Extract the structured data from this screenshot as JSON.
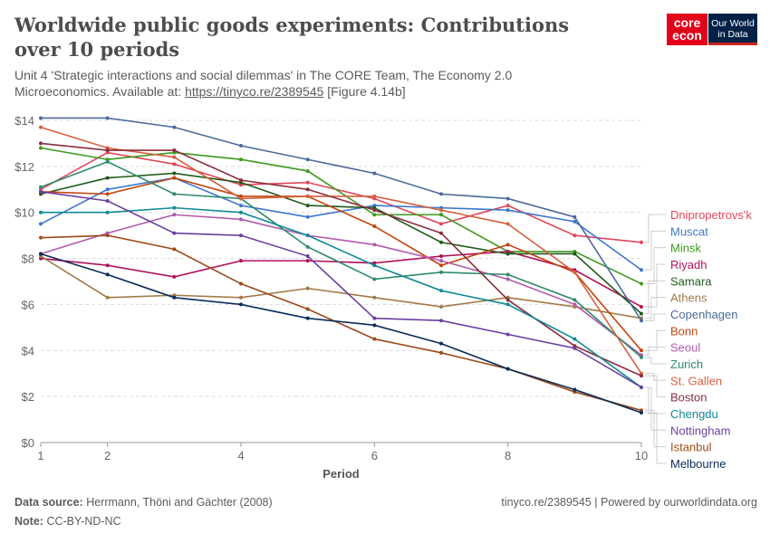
{
  "header": {
    "title": "Worldwide public goods experiments: Contributions over 10 periods",
    "subtitle_text": "Unit 4 'Strategic interactions and social dilemmas' in The CORE Team, The Economy 2.0 Microeconomics. Available at: ",
    "subtitle_link": "https://tinyco.re/2389545",
    "subtitle_suffix": " [Figure 4.14b]",
    "logo_core": "core econ",
    "logo_owid": "Our World in Data"
  },
  "footer": {
    "source_label": "Data source:",
    "source": "Herrmann, Thöni and Gächter (2008)",
    "note_label": "Note:",
    "note": "CC-BY-ND-NC",
    "right": "tinyco.re/2389545 | Powered by ourworldindata.org"
  },
  "chart_data": {
    "type": "line",
    "xlabel": "Period",
    "ylabel": "",
    "x": [
      1,
      2,
      3,
      4,
      5,
      6,
      7,
      8,
      9,
      10
    ],
    "xticks": [
      1,
      2,
      4,
      6,
      8,
      10
    ],
    "ylim": [
      0,
      14
    ],
    "yticks": [
      "$0",
      "$2",
      "$4",
      "$6",
      "$8",
      "$10",
      "$12",
      "$14"
    ],
    "ytick_values": [
      0,
      2,
      4,
      6,
      8,
      10,
      12,
      14
    ],
    "grid": "horizontal dashed",
    "legend_placement": "right",
    "series": [
      {
        "name": "Dnipropetrovs'k",
        "color": "#e0475a",
        "values": [
          11.0,
          12.6,
          12.1,
          11.2,
          11.3,
          10.6,
          9.5,
          10.3,
          9.0,
          8.7
        ]
      },
      {
        "name": "Muscat",
        "color": "#3c78cc",
        "values": [
          9.5,
          11.0,
          11.5,
          10.3,
          9.8,
          10.3,
          10.2,
          10.1,
          9.6,
          7.5
        ]
      },
      {
        "name": "Minsk",
        "color": "#3d9a1f",
        "values": [
          12.8,
          12.3,
          12.6,
          12.3,
          11.8,
          9.9,
          9.9,
          8.3,
          8.3,
          6.9
        ]
      },
      {
        "name": "Riyadh",
        "color": "#b0125a",
        "values": [
          8.0,
          7.7,
          7.2,
          7.9,
          7.9,
          7.8,
          8.1,
          8.3,
          7.5,
          5.9
        ]
      },
      {
        "name": "Samara",
        "color": "#1f5a1a",
        "values": [
          10.8,
          11.5,
          11.7,
          11.3,
          10.3,
          10.2,
          8.7,
          8.2,
          8.2,
          5.6
        ]
      },
      {
        "name": "Athens",
        "color": "#a27a48",
        "values": [
          8.1,
          6.3,
          6.4,
          6.3,
          6.7,
          6.3,
          5.9,
          6.3,
          5.9,
          5.4
        ]
      },
      {
        "name": "Copenhagen",
        "color": "#4c6a9c",
        "values": [
          14.1,
          14.1,
          13.7,
          12.9,
          12.3,
          11.7,
          10.8,
          10.6,
          9.8,
          5.3
        ]
      },
      {
        "name": "Bonn",
        "color": "#c2450f",
        "values": [
          10.9,
          10.8,
          11.5,
          10.7,
          10.7,
          9.4,
          7.7,
          8.6,
          7.4,
          4.0
        ]
      },
      {
        "name": "Seoul",
        "color": "#b05aae",
        "values": [
          8.2,
          9.1,
          9.9,
          9.7,
          9.0,
          8.6,
          7.9,
          7.1,
          6.0,
          3.8
        ]
      },
      {
        "name": "Zurich",
        "color": "#2e8b6a",
        "values": [
          11.1,
          12.2,
          10.8,
          10.6,
          8.5,
          7.1,
          7.4,
          7.3,
          6.2,
          3.7
        ]
      },
      {
        "name": "St. Gallen",
        "color": "#d4613e",
        "values": [
          13.7,
          12.8,
          12.4,
          10.6,
          10.7,
          10.7,
          10.1,
          9.5,
          7.4,
          3.0
        ]
      },
      {
        "name": "Boston",
        "color": "#8b2e3a",
        "values": [
          13.0,
          12.7,
          12.7,
          11.4,
          11.0,
          10.1,
          9.1,
          6.2,
          4.2,
          2.9
        ]
      },
      {
        "name": "Chengdu",
        "color": "#0f8a96",
        "values": [
          10.0,
          10.0,
          10.2,
          10.0,
          9.0,
          7.7,
          6.6,
          6.0,
          4.5,
          2.4
        ]
      },
      {
        "name": "Nottingham",
        "color": "#6b3fa0",
        "values": [
          10.9,
          10.5,
          9.1,
          9.0,
          8.1,
          5.4,
          5.3,
          4.7,
          4.1,
          2.4
        ]
      },
      {
        "name": "Istanbul",
        "color": "#9c4a1a",
        "values": [
          8.9,
          9.0,
          8.4,
          6.9,
          5.8,
          4.5,
          3.9,
          3.2,
          2.2,
          1.4
        ]
      },
      {
        "name": "Melbourne",
        "color": "#0a2c5a",
        "values": [
          8.2,
          7.3,
          6.3,
          6.0,
          5.4,
          5.1,
          4.3,
          3.2,
          2.3,
          1.3
        ]
      }
    ]
  }
}
